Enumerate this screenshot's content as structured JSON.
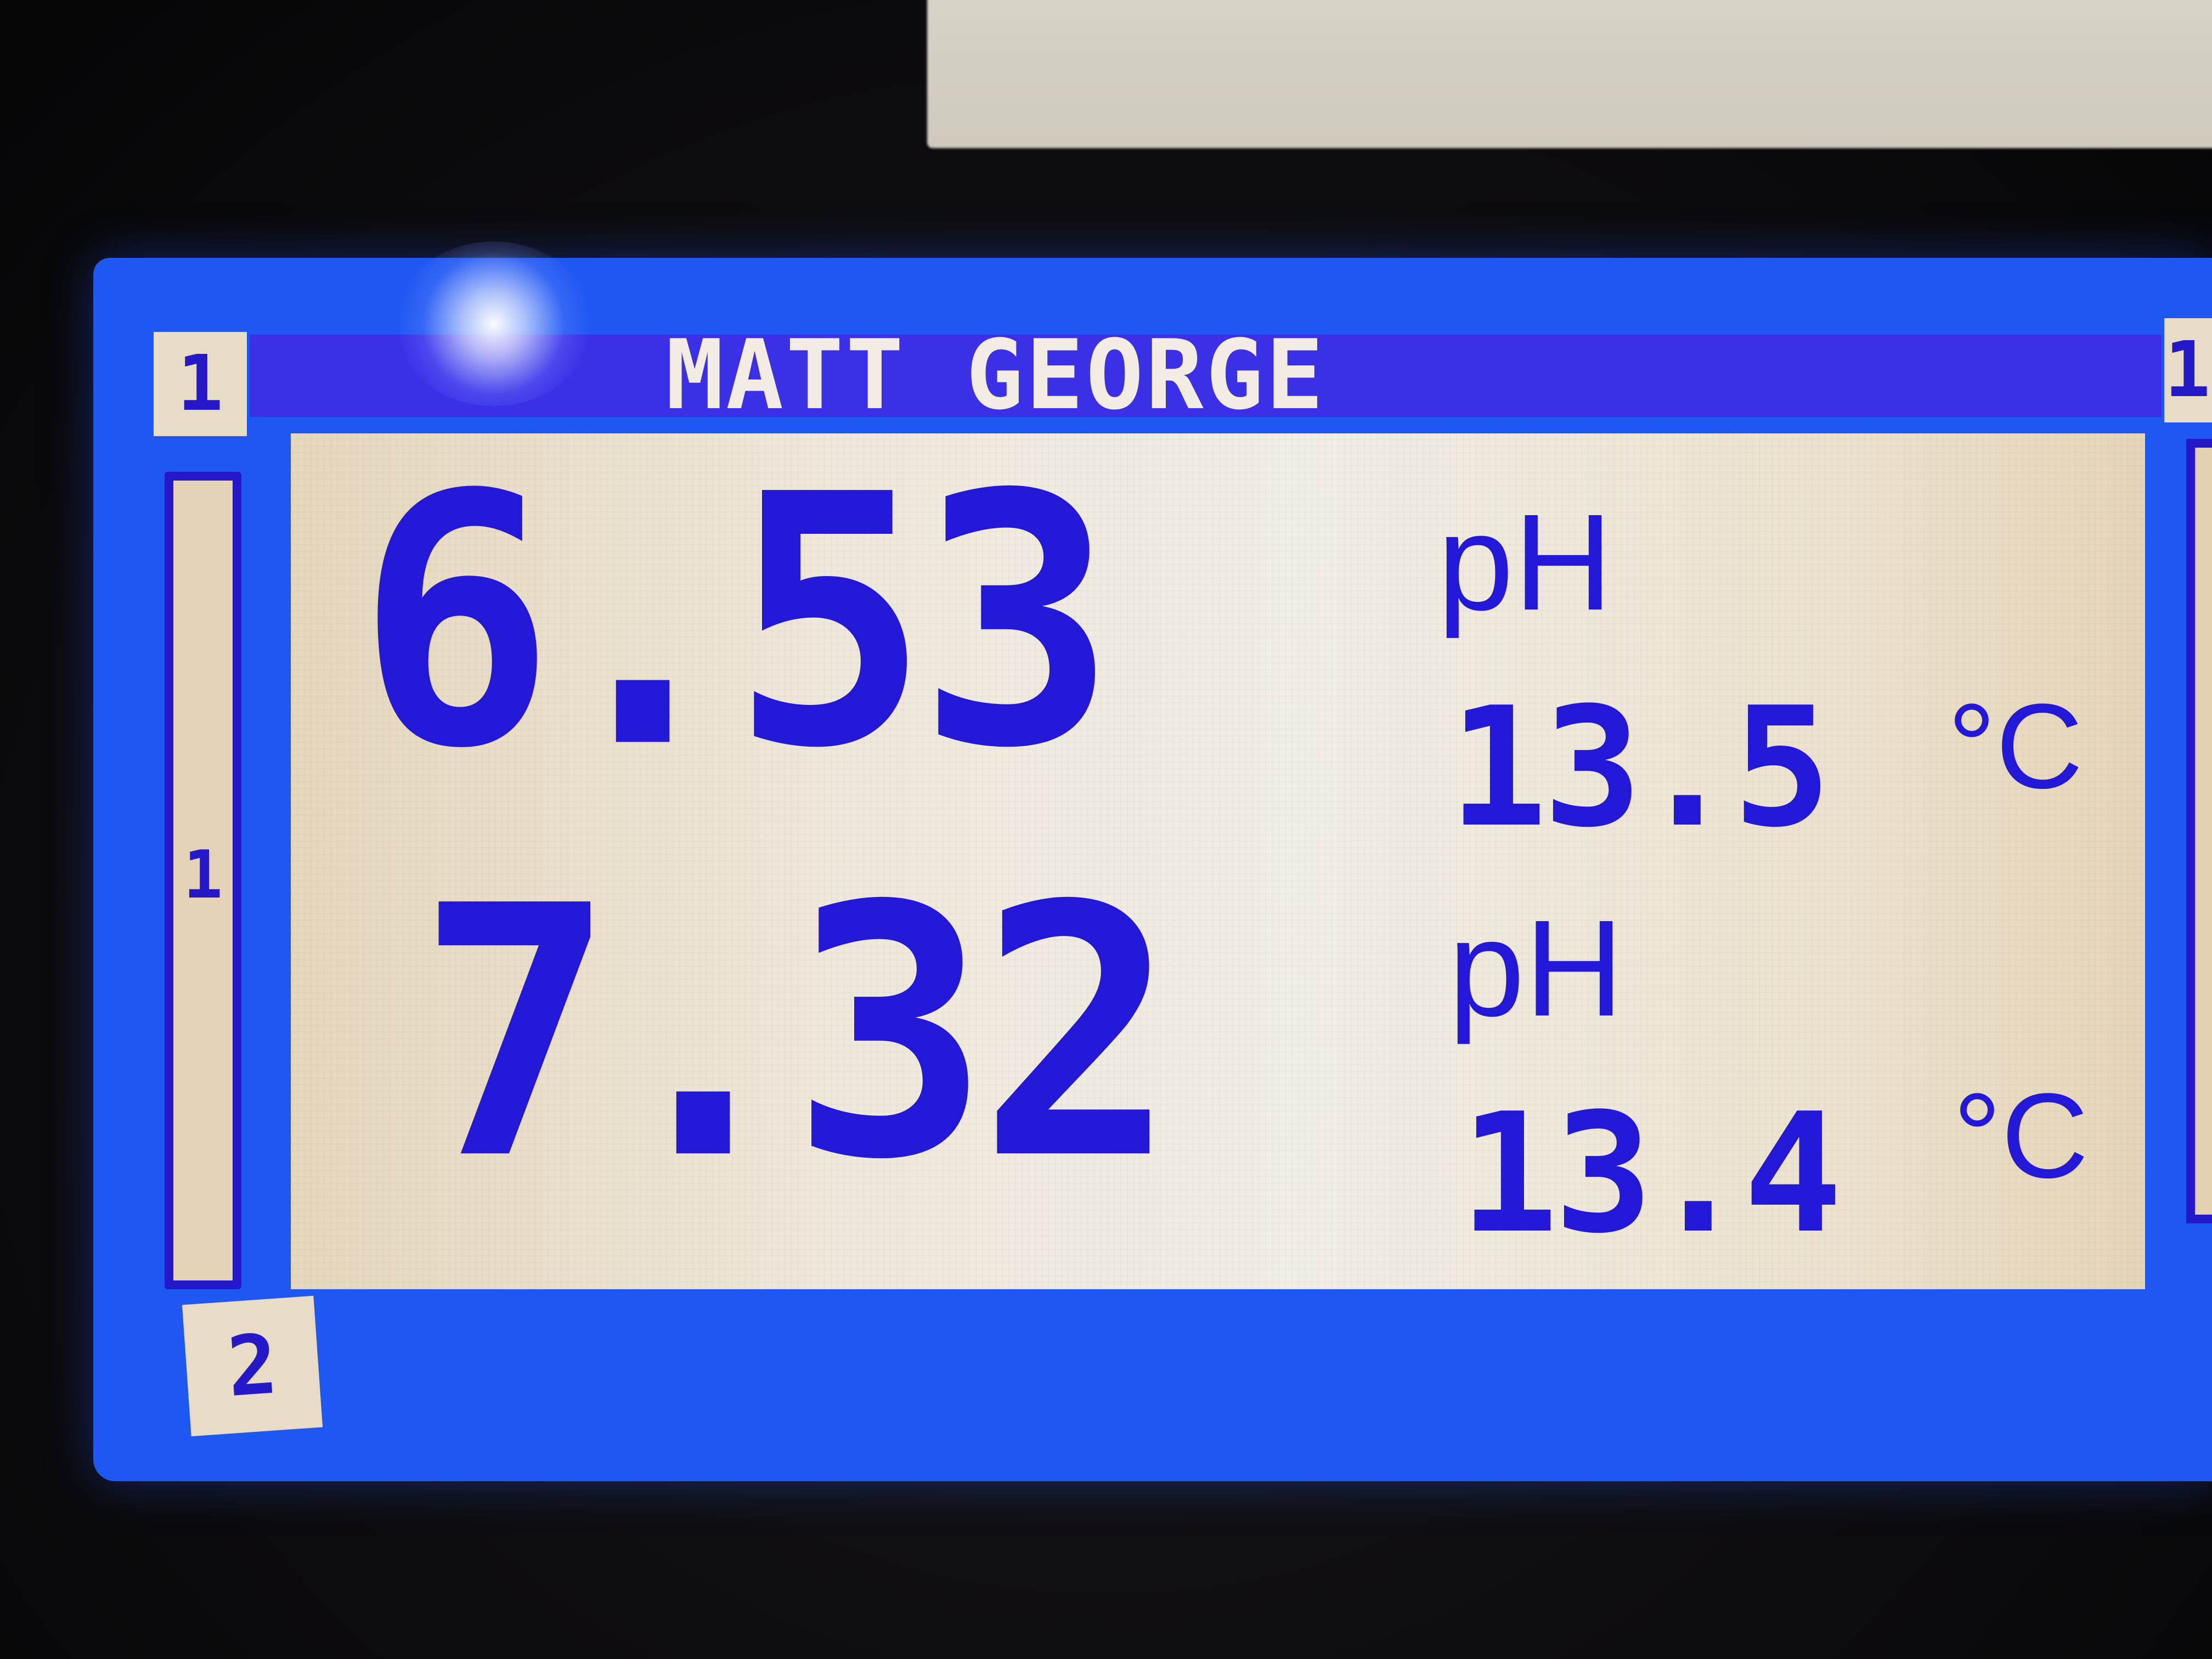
{
  "display": {
    "title": "MATT GEORGE",
    "channel_top": "1",
    "channel_side": "1",
    "channel_bottom": "2",
    "channel_right": "1"
  },
  "readings": [
    {
      "value": "6.53",
      "unit": "pH",
      "temperature": "13.5",
      "temp_unit": "°C"
    },
    {
      "value": "7.32",
      "unit": "pH",
      "temperature": "13.4",
      "temp_unit": "°C"
    }
  ],
  "colors": {
    "backlight": "#1f57f2",
    "header_bar": "#3b2fe8",
    "digits": "#2418d8",
    "panel": "#efe8dc"
  }
}
